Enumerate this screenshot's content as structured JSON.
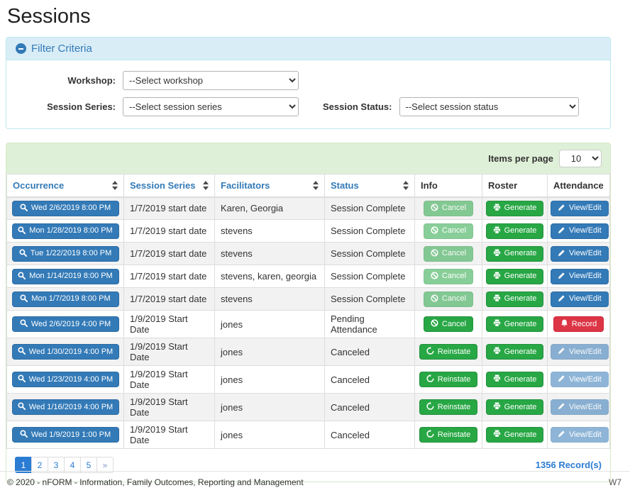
{
  "page_title": "Sessions",
  "colors": {
    "primary_blue": "#337ab7",
    "success_green": "#28a745",
    "danger_red": "#dc3545",
    "filter_header_bg": "#d9edf7",
    "table_header_bg": "#dff0d8",
    "active_page_blue": "#2b7cd3"
  },
  "filter": {
    "header": "Filter Criteria",
    "fields": [
      {
        "label": "Workshop:",
        "value": "--Select workshop"
      },
      {
        "label": "Session Series:",
        "value": "--Select session series"
      },
      {
        "label": "Session Status:",
        "value": "--Select session status"
      }
    ]
  },
  "table": {
    "items_per_page_label": "Items per page",
    "items_per_page_value": "10",
    "columns": [
      {
        "label": "Occurrence",
        "sortable": true
      },
      {
        "label": "Session Series",
        "sortable": true
      },
      {
        "label": "Facilitators",
        "sortable": true
      },
      {
        "label": "Status",
        "sortable": true
      },
      {
        "label": "Info",
        "sortable": false
      },
      {
        "label": "Roster",
        "sortable": false
      },
      {
        "label": "Attendance",
        "sortable": false
      }
    ],
    "rows": [
      {
        "occurrence": "Wed 2/6/2019 8:00 PM",
        "session_series": "1/7/2019 start date",
        "facilitators": "Karen, Georgia",
        "status": "Session Complete",
        "info_button": {
          "label": "Cancel",
          "icon": "ban",
          "color": "green",
          "disabled": true
        },
        "roster_button": {
          "label": "Generate",
          "icon": "printer",
          "color": "green",
          "disabled": false
        },
        "attendance_button": {
          "label": "View/Edit",
          "icon": "pencil",
          "color": "blue",
          "disabled": false
        }
      },
      {
        "occurrence": "Mon 1/28/2019 8:00 PM",
        "session_series": "1/7/2019 start date",
        "facilitators": "stevens",
        "status": "Session Complete",
        "info_button": {
          "label": "Cancel",
          "icon": "ban",
          "color": "green",
          "disabled": true
        },
        "roster_button": {
          "label": "Generate",
          "icon": "printer",
          "color": "green",
          "disabled": false
        },
        "attendance_button": {
          "label": "View/Edit",
          "icon": "pencil",
          "color": "blue",
          "disabled": false
        }
      },
      {
        "occurrence": "Tue 1/22/2019 8:00 PM",
        "session_series": "1/7/2019 start date",
        "facilitators": "stevens",
        "status": "Session Complete",
        "info_button": {
          "label": "Cancel",
          "icon": "ban",
          "color": "green",
          "disabled": true
        },
        "roster_button": {
          "label": "Generate",
          "icon": "printer",
          "color": "green",
          "disabled": false
        },
        "attendance_button": {
          "label": "View/Edit",
          "icon": "pencil",
          "color": "blue",
          "disabled": false
        }
      },
      {
        "occurrence": "Mon 1/14/2019 8:00 PM",
        "session_series": "1/7/2019 start date",
        "facilitators": "stevens, karen, georgia",
        "status": "Session Complete",
        "info_button": {
          "label": "Cancel",
          "icon": "ban",
          "color": "green",
          "disabled": true
        },
        "roster_button": {
          "label": "Generate",
          "icon": "printer",
          "color": "green",
          "disabled": false
        },
        "attendance_button": {
          "label": "View/Edit",
          "icon": "pencil",
          "color": "blue",
          "disabled": false
        }
      },
      {
        "occurrence": "Mon 1/7/2019 8:00 PM",
        "session_series": "1/7/2019 start date",
        "facilitators": "stevens",
        "status": "Session Complete",
        "info_button": {
          "label": "Cancel",
          "icon": "ban",
          "color": "green",
          "disabled": true
        },
        "roster_button": {
          "label": "Generate",
          "icon": "printer",
          "color": "green",
          "disabled": false
        },
        "attendance_button": {
          "label": "View/Edit",
          "icon": "pencil",
          "color": "blue",
          "disabled": false
        }
      },
      {
        "occurrence": "Wed 2/6/2019 4:00 PM",
        "session_series": "1/9/2019 Start Date",
        "facilitators": "jones",
        "status": "Pending Attendance",
        "info_button": {
          "label": "Cancel",
          "icon": "ban",
          "color": "green",
          "disabled": false
        },
        "roster_button": {
          "label": "Generate",
          "icon": "printer",
          "color": "green",
          "disabled": false
        },
        "attendance_button": {
          "label": "Record",
          "icon": "bell",
          "color": "red",
          "disabled": false
        }
      },
      {
        "occurrence": "Wed 1/30/2019 4:00 PM",
        "session_series": "1/9/2019 Start Date",
        "facilitators": "jones",
        "status": "Canceled",
        "info_button": {
          "label": "Reinstate",
          "icon": "undo",
          "color": "green",
          "disabled": false
        },
        "roster_button": {
          "label": "Generate",
          "icon": "printer",
          "color": "green",
          "disabled": false
        },
        "attendance_button": {
          "label": "View/Edit",
          "icon": "pencil",
          "color": "blue",
          "disabled": true
        }
      },
      {
        "occurrence": "Wed 1/23/2019 4:00 PM",
        "session_series": "1/9/2019 Start Date",
        "facilitators": "jones",
        "status": "Canceled",
        "info_button": {
          "label": "Reinstate",
          "icon": "undo",
          "color": "green",
          "disabled": false
        },
        "roster_button": {
          "label": "Generate",
          "icon": "printer",
          "color": "green",
          "disabled": false
        },
        "attendance_button": {
          "label": "View/Edit",
          "icon": "pencil",
          "color": "blue",
          "disabled": true
        }
      },
      {
        "occurrence": "Wed 1/16/2019 4:00 PM",
        "session_series": "1/9/2019 Start Date",
        "facilitators": "jones",
        "status": "Canceled",
        "info_button": {
          "label": "Reinstate",
          "icon": "undo",
          "color": "green",
          "disabled": false
        },
        "roster_button": {
          "label": "Generate",
          "icon": "printer",
          "color": "green",
          "disabled": false
        },
        "attendance_button": {
          "label": "View/Edit",
          "icon": "pencil",
          "color": "blue",
          "disabled": true
        }
      },
      {
        "occurrence": "Wed 1/9/2019 1:00 PM",
        "session_series": "1/9/2019 Start Date",
        "facilitators": "jones",
        "status": "Canceled",
        "info_button": {
          "label": "Reinstate",
          "icon": "undo",
          "color": "green",
          "disabled": false
        },
        "roster_button": {
          "label": "Generate",
          "icon": "printer",
          "color": "green",
          "disabled": false
        },
        "attendance_button": {
          "label": "View/Edit",
          "icon": "pencil",
          "color": "blue",
          "disabled": true
        }
      }
    ],
    "pagination": {
      "pages": [
        "1",
        "2",
        "3",
        "4",
        "5",
        "»"
      ],
      "active": "1"
    },
    "record_count": "1356 Record(s)"
  },
  "footer": {
    "copyright": "© 2020 - nFORM - Information, Family Outcomes, Reporting and Management",
    "environment": "W7"
  }
}
